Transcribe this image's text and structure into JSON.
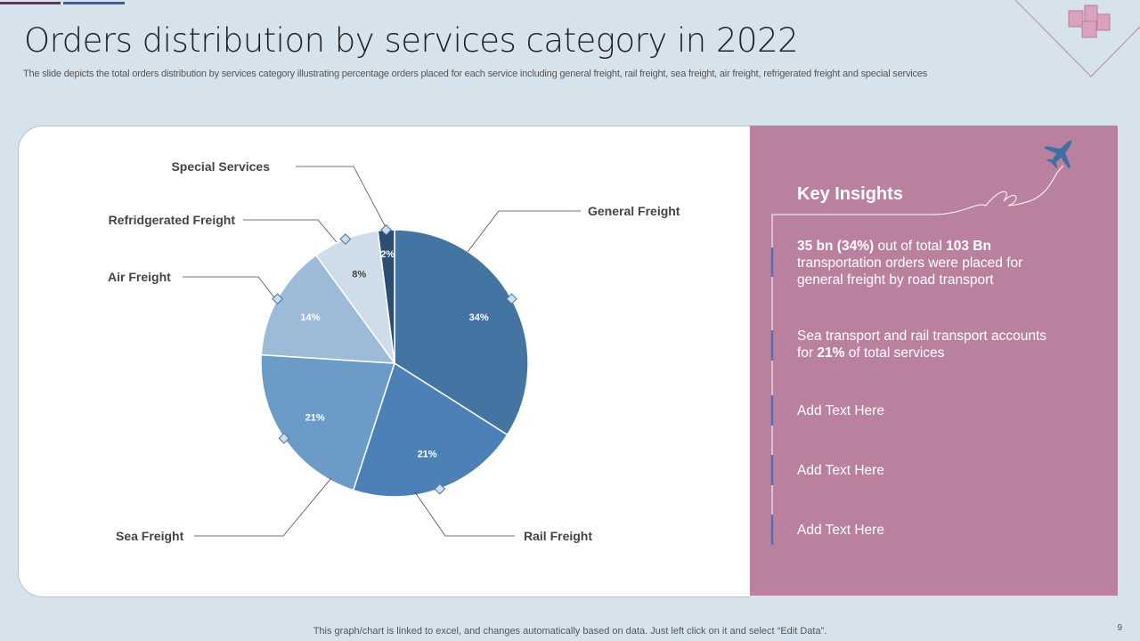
{
  "title": "Orders distribution by services category in 2022",
  "subtitle": "The slide depicts the total orders distribution by services category illustrating percentage orders placed for each service including general freight, rail freight, sea freight, air freight, refrigerated freight and special services",
  "chart_data": {
    "type": "pie",
    "categories": [
      "General Freight",
      "Rail Freight",
      "Sea Freight",
      "Air Freight",
      "Refridgerated Freight",
      "Special Services"
    ],
    "values": [
      34,
      21,
      21,
      14,
      8,
      2
    ],
    "data_labels": [
      "34%",
      "21%",
      "21%",
      "14%",
      "8%",
      "2%"
    ],
    "colors": [
      "#4474a2",
      "#4c80b6",
      "#6b9bc6",
      "#9dbad8",
      "#cfdcea",
      "#2d4e72"
    ],
    "start": "12 o'clock, clockwise"
  },
  "insights": {
    "heading": "Key Insights",
    "items": [
      {
        "b1": "35 bn (34%)",
        "t1": " out of total ",
        "b2": "103 Bn",
        "t2": " transportation  orders were placed for general freight  by  road transport"
      },
      {
        "t1": "Sea transport  and rail transport accounts  for ",
        "b1": "21%",
        "t2": " of total services"
      },
      {
        "t1": "Add Text Here"
      },
      {
        "t1": "Add Text Here"
      },
      {
        "t1": "Add Text Here"
      }
    ]
  },
  "footer": "This graph/chart is linked to excel,  and changes automatically based on data. Just left click on it and select “Edit Data”.",
  "page_number": "9"
}
